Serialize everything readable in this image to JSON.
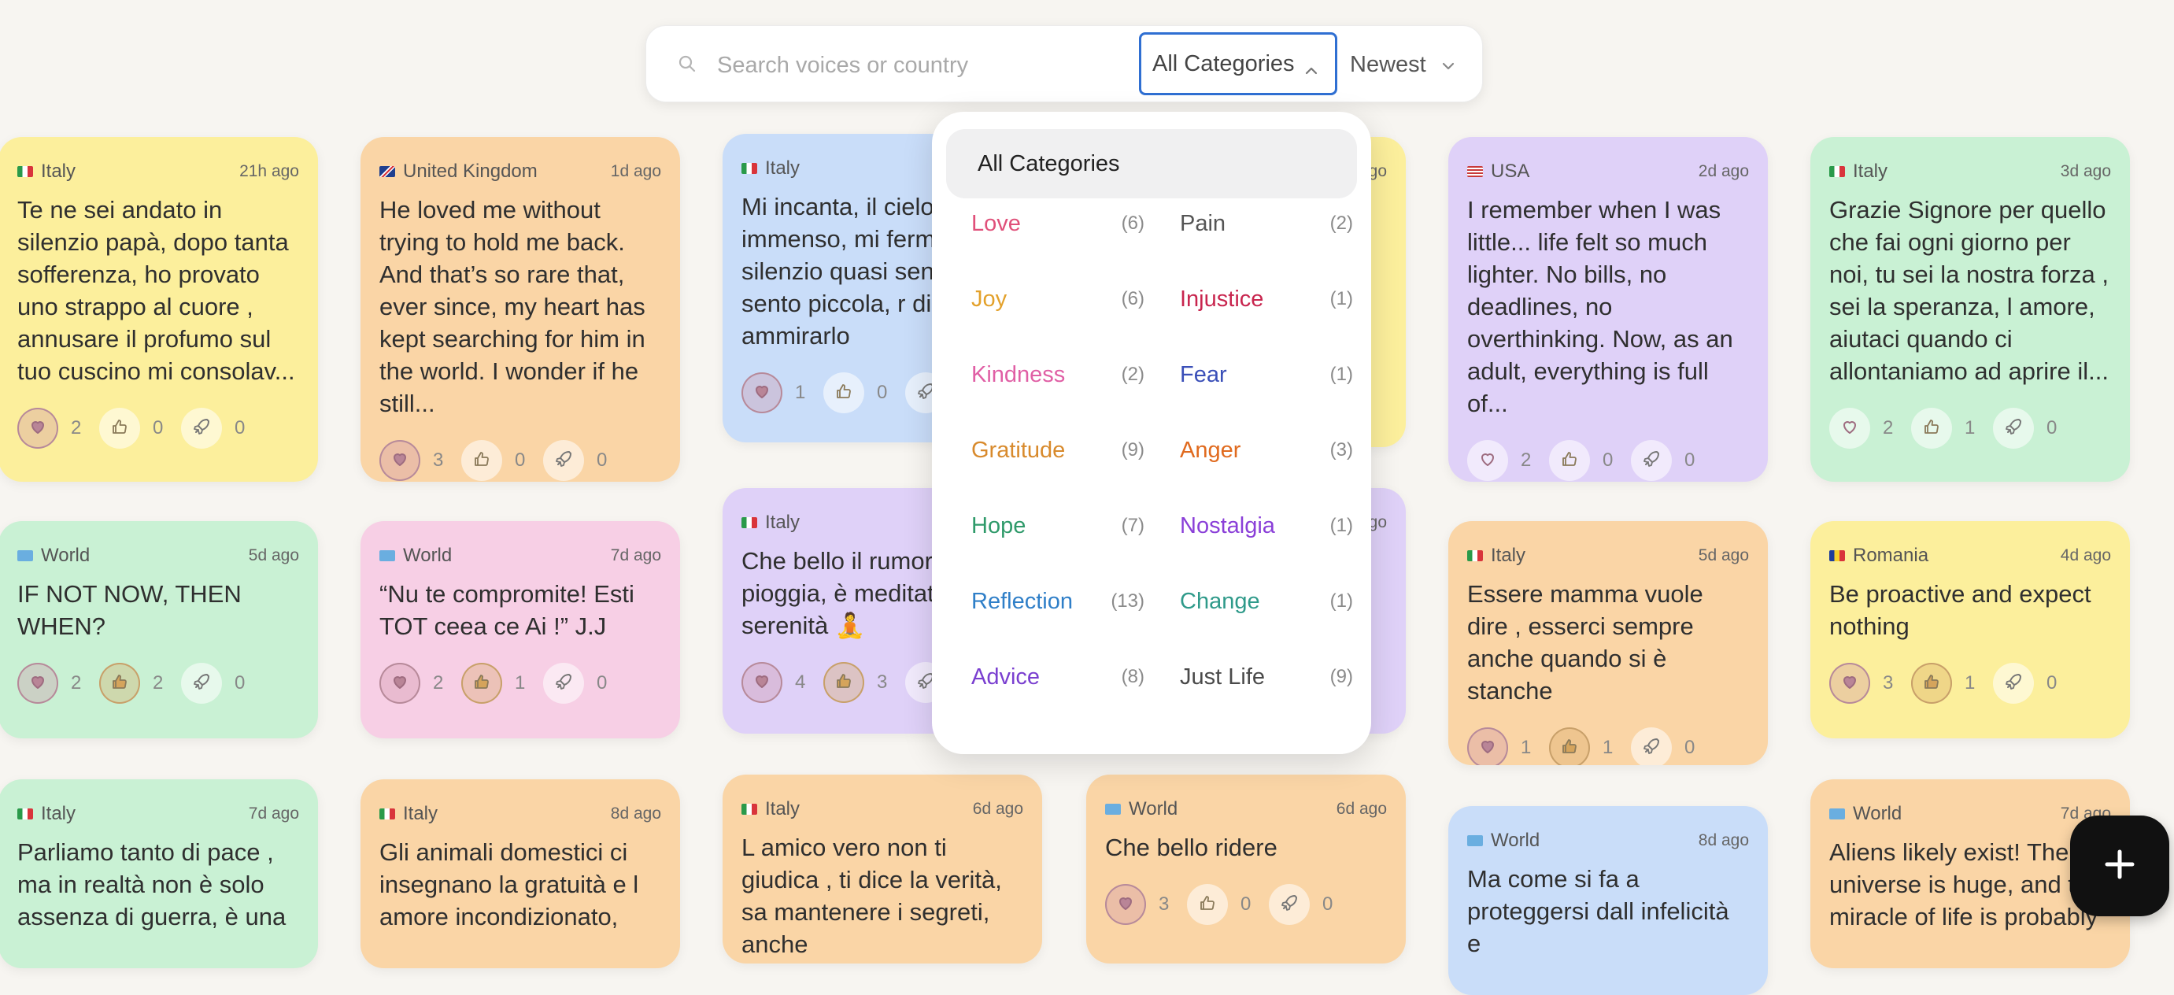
{
  "search": {
    "placeholder": "Search voices or country",
    "category_value": "All Categories",
    "sort_value": "Newest"
  },
  "dropdown": {
    "all_label": "All Categories",
    "left": [
      {
        "label": "Love",
        "count": "(6)",
        "color": "#e0507a"
      },
      {
        "label": "Joy",
        "count": "(6)",
        "color": "#e3a12b"
      },
      {
        "label": "Kindness",
        "count": "(2)",
        "color": "#e05fa5"
      },
      {
        "label": "Gratitude",
        "count": "(9)",
        "color": "#d88a2c"
      },
      {
        "label": "Hope",
        "count": "(7)",
        "color": "#2f9a6a"
      },
      {
        "label": "Reflection",
        "count": "(13)",
        "color": "#2f7fc8"
      },
      {
        "label": "Advice",
        "count": "(8)",
        "color": "#7a3fd0"
      }
    ],
    "right": [
      {
        "label": "Pain",
        "count": "(2)",
        "color": "#555555"
      },
      {
        "label": "Injustice",
        "count": "(1)",
        "color": "#c8254e"
      },
      {
        "label": "Fear",
        "count": "(1)",
        "color": "#3a4fb8"
      },
      {
        "label": "Anger",
        "count": "(3)",
        "color": "#e06a1e"
      },
      {
        "label": "Nostalgia",
        "count": "(1)",
        "color": "#8a3fd8"
      },
      {
        "label": "Change",
        "count": "(1)",
        "color": "#2f9a8a"
      },
      {
        "label": "Just Life",
        "count": "(9)",
        "color": "#4a4a4a"
      }
    ]
  },
  "cards": [
    {
      "country": "Italy",
      "time": "21h ago",
      "text": "Te ne sei andato in silenzio papà, dopo tanta sofferenza, ho provato uno strappo al cuore , annusare il profumo sul tuo cuscino mi consolav...",
      "hearts": "2",
      "thumbs": "0",
      "rockets": "0"
    },
    {
      "country": "United Kingdom",
      "time": "1d ago",
      "text": "He loved me without trying to hold me back. And that’s so rare that, ever since, my heart has kept searching for him in the world. I wonder if he still...",
      "hearts": "3",
      "thumbs": "0",
      "rockets": "0"
    },
    {
      "country": "Italy",
      "time": "",
      "text": "Mi incanta, il cielo immenso, mi fermo silenzio quasi senz mi sento piccola, r di ammirarlo",
      "hearts": "1",
      "thumbs": "0",
      "rockets": ""
    },
    {
      "country": "USA",
      "time": "2d ago",
      "text": "I remember when I was little... life felt so much lighter. No bills, no deadlines, no overthinking. Now, as an adult, everything is full of...",
      "hearts": "2",
      "thumbs": "0",
      "rockets": "0"
    },
    {
      "country": "Italy",
      "time": "3d ago",
      "text": "Grazie Signore per quello che fai ogni giorno per noi, tu sei la nostra forza , sei la speranza, l amore, aiutaci quando ci allontaniamo ad aprire il...",
      "hearts": "2",
      "thumbs": "1",
      "rockets": "0"
    },
    {
      "country": "World",
      "time": "5d ago",
      "text": "IF NOT NOW, THEN WHEN?",
      "hearts": "2",
      "thumbs": "2",
      "rockets": "0"
    },
    {
      "country": "World",
      "time": "7d ago",
      "text": "“Nu te compromite! Esti TOT ceea ce Ai !” J.J",
      "hearts": "2",
      "thumbs": "1",
      "rockets": "0"
    },
    {
      "country": "Italy",
      "time": "",
      "text": "Che bello il rumore pioggia, è meditat mette serenità 🧘",
      "hearts": "4",
      "thumbs": "3",
      "rockets": ""
    },
    {
      "country": "Italy",
      "time": "5d ago",
      "text": "Essere mamma vuole dire , esserci sempre anche quando si è stanche",
      "hearts": "1",
      "thumbs": "1",
      "rockets": "0"
    },
    {
      "country": "Romania",
      "time": "4d ago",
      "text": "Be proactive and expect nothing",
      "hearts": "3",
      "thumbs": "1",
      "rockets": "0"
    },
    {
      "country": "Italy",
      "time": "7d ago",
      "text": "Parliamo tanto di pace , ma in realtà non è solo assenza di guerra, è una",
      "hearts": "",
      "thumbs": "",
      "rockets": ""
    },
    {
      "country": "Italy",
      "time": "8d ago",
      "text": "Gli animali domestici ci insegnano la gratuità e l amore incondizionato,",
      "hearts": "",
      "thumbs": "",
      "rockets": ""
    },
    {
      "country": "Italy",
      "time": "6d ago",
      "text": "L amico vero non ti giudica , ti dice la verità, sa mantenere i segreti, anche",
      "hearts": "",
      "thumbs": "",
      "rockets": ""
    },
    {
      "country": "World",
      "time": "6d ago",
      "text": "Che bello ridere",
      "hearts": "3",
      "thumbs": "0",
      "rockets": "0"
    },
    {
      "country": "World",
      "time": "8d ago",
      "text": "Ma come si fa a proteggersi dall infelicità e",
      "hearts": "",
      "thumbs": "",
      "rockets": ""
    },
    {
      "country": "World",
      "time": "7d ago",
      "text": "Aliens likely exist! The universe is huge, and the miracle of life is probably",
      "hearts": "",
      "thumbs": "",
      "rockets": ""
    },
    {
      "country": "",
      "time": "go",
      "text": "à",
      "hearts": "",
      "thumbs": "",
      "rockets": ""
    },
    {
      "country": "",
      "time": "go",
      "text": "e",
      "hearts": "",
      "thumbs": "",
      "rockets": ""
    }
  ]
}
